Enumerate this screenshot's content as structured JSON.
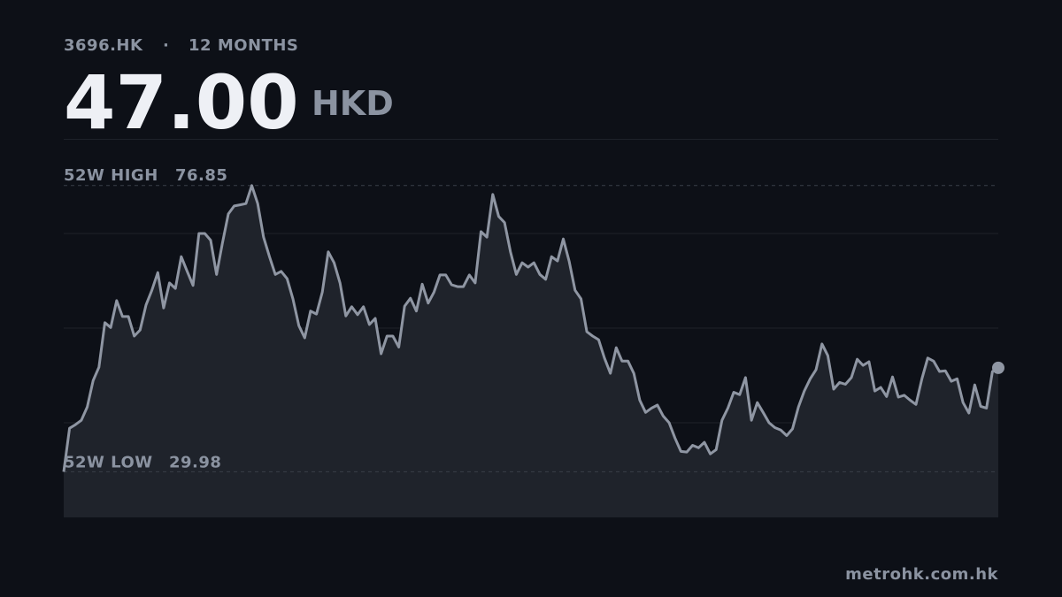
{
  "chart_data": {
    "type": "line",
    "ticker": "3696.HK",
    "separator": "·",
    "period": "12 MONTHS",
    "price": "47.00",
    "currency": "HKD",
    "high": {
      "label": "52W HIGH",
      "value": 76.85
    },
    "low": {
      "label": "52W LOW",
      "value": 29.98
    },
    "source": "metrohk.com.hk",
    "color": "#8f96a3",
    "ylim": [
      22.5,
      84.5
    ],
    "yticks": [
      38,
      53.5,
      69
    ],
    "grid": true,
    "values": [
      29.98,
      37.1,
      37.7,
      38.4,
      40.6,
      44.9,
      47.1,
      54.4,
      53.6,
      58.0,
      55.4,
      55.4,
      52.2,
      53.2,
      57.3,
      59.7,
      62.6,
      56.8,
      60.9,
      60.0,
      65.2,
      62.8,
      60.5,
      69.0,
      69.0,
      67.9,
      62.3,
      67.4,
      72.2,
      73.5,
      73.7,
      73.9,
      76.85,
      73.9,
      68.4,
      65.2,
      62.3,
      62.8,
      61.6,
      58.3,
      53.9,
      51.9,
      56.3,
      55.8,
      59.4,
      66.0,
      64.2,
      60.9,
      55.5,
      57.0,
      55.7,
      57.0,
      54.1,
      55.1,
      49.3,
      52.2,
      52.2,
      50.4,
      57.1,
      58.4,
      56.3,
      60.7,
      57.6,
      59.4,
      62.2,
      62.2,
      60.6,
      60.3,
      60.3,
      62.2,
      60.9,
      69.3,
      68.4,
      75.4,
      71.8,
      70.8,
      66.0,
      62.3,
      64.2,
      63.5,
      64.2,
      62.3,
      61.5,
      65.2,
      64.5,
      68.1,
      64.4,
      59.7,
      58.3,
      52.9,
      52.2,
      51.6,
      48.6,
      46.1,
      50.3,
      48.1,
      48.1,
      46.1,
      41.7,
      39.7,
      40.4,
      40.9,
      39.1,
      38.0,
      35.5,
      33.3,
      33.2,
      34.3,
      33.9,
      34.8,
      32.9,
      33.6,
      38.4,
      40.4,
      43.0,
      42.6,
      45.4,
      38.4,
      41.3,
      39.7,
      38.0,
      37.2,
      36.8,
      35.9,
      37.0,
      40.6,
      43.2,
      45.2,
      46.7,
      50.9,
      49.0,
      43.5,
      44.6,
      44.3,
      45.4,
      48.4,
      47.4,
      48.0,
      43.2,
      43.8,
      42.3,
      45.5,
      42.2,
      42.5,
      41.7,
      41.0,
      45.2,
      48.6,
      48.1,
      46.4,
      46.5,
      44.8,
      45.2,
      41.3,
      39.6,
      44.2,
      40.7,
      40.4,
      46.4,
      47.0
    ]
  }
}
